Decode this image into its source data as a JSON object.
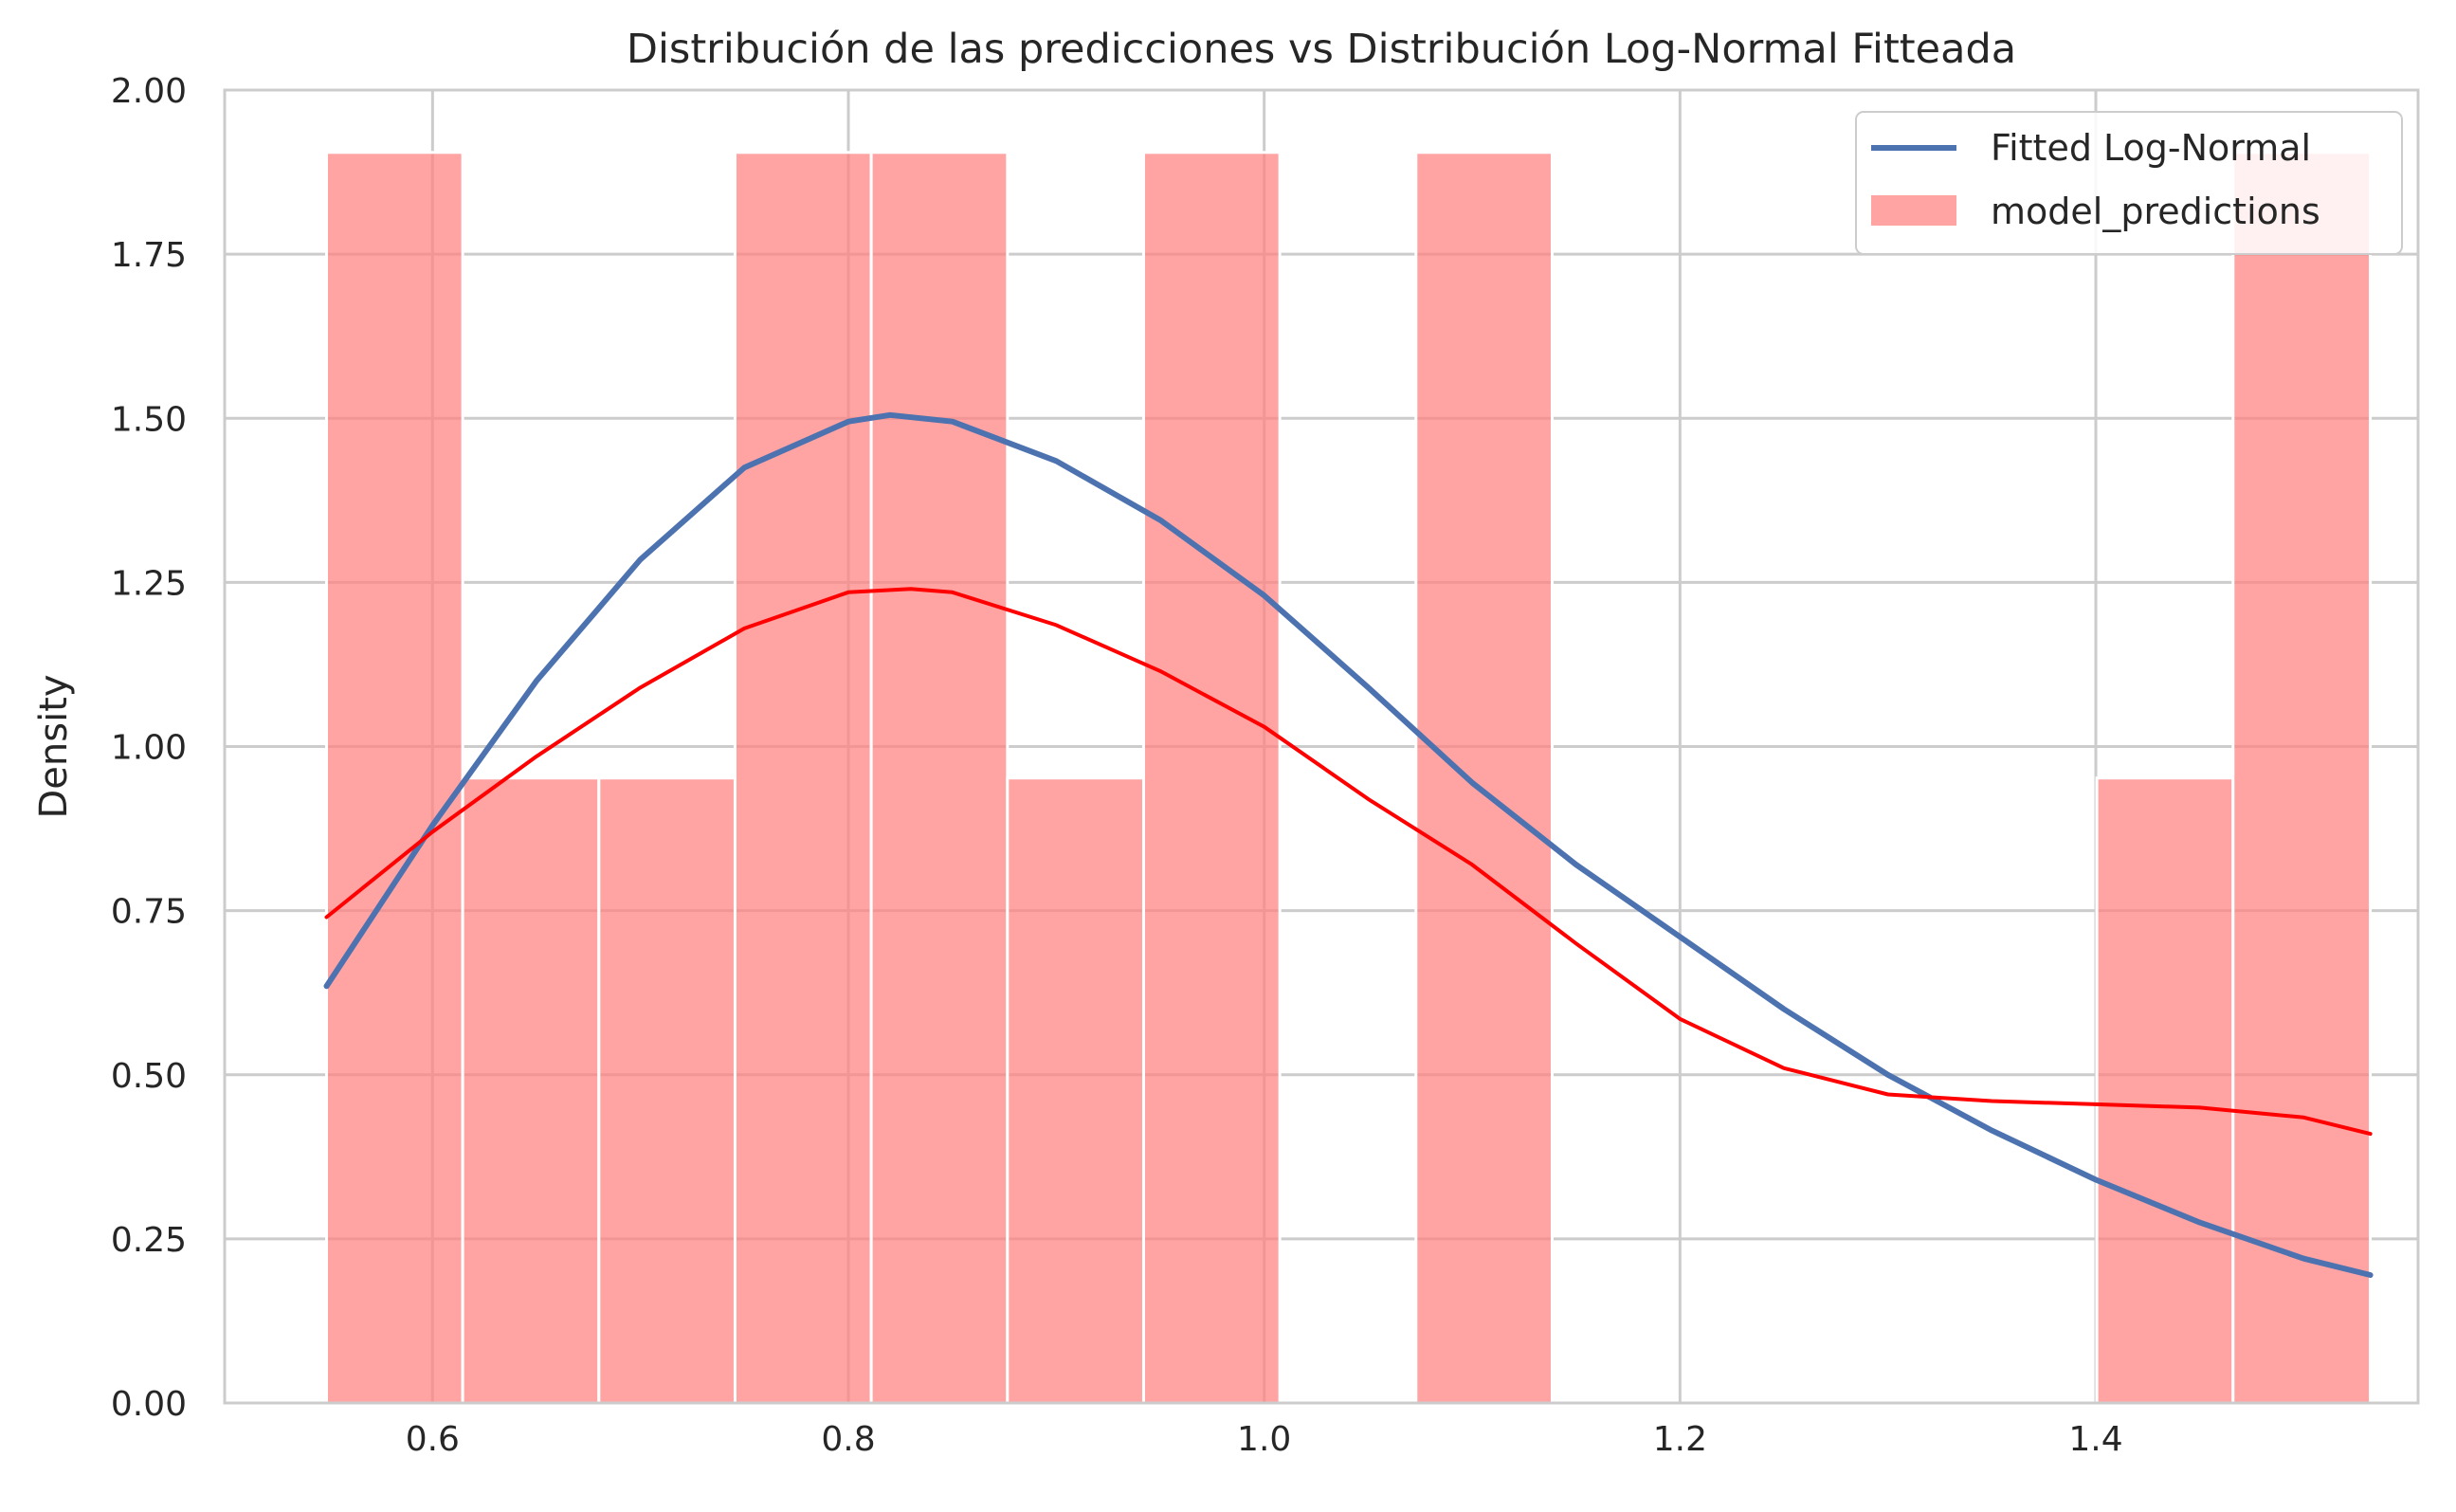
{
  "chart_data": {
    "type": "bar",
    "title": "Distribución de las predicciones vs Distribución Log-Normal Fitteada",
    "xlabel": "",
    "ylabel": "Density",
    "xlim": [
      0.5,
      1.555
    ],
    "ylim": [
      0,
      2.0
    ],
    "x_ticks": [
      0.6,
      0.8,
      1.0,
      1.2,
      1.4
    ],
    "x_tick_labels": [
      "0.6",
      "0.8",
      "1.0",
      "1.2",
      "1.4"
    ],
    "y_ticks": [
      0,
      0.25,
      0.5,
      0.75,
      1.0,
      1.25,
      1.5,
      1.75,
      2.0
    ],
    "y_tick_labels": [
      "0.00",
      "0.25",
      "0.50",
      "0.75",
      "1.00",
      "1.25",
      "1.50",
      "1.75",
      "2.00"
    ],
    "grid": true,
    "legend_position": "top-right",
    "legend": [
      "Fitted Log-Normal",
      "model_predictions"
    ],
    "histogram": {
      "name": "model_predictions",
      "color": "#ff7f7f",
      "bin_edges": [
        0.549,
        0.6145,
        0.68,
        0.7455,
        0.811,
        0.8765,
        0.942,
        1.0075,
        1.073,
        1.1385,
        1.204,
        1.2695,
        1.335,
        1.4005,
        1.466,
        1.532
      ],
      "densities": [
        1.905,
        0.952,
        0.952,
        1.905,
        1.905,
        0.952,
        1.905,
        0,
        1.905,
        0,
        0,
        0,
        0,
        0.952,
        1.905
      ]
    },
    "series": [
      {
        "name": "Fitted Log-Normal",
        "color": "#4c72b0",
        "x": [
          0.549,
          0.6,
          0.65,
          0.7,
          0.75,
          0.8,
          0.82,
          0.85,
          0.9,
          0.95,
          1.0,
          1.05,
          1.1,
          1.15,
          1.2,
          1.25,
          1.3,
          1.35,
          1.4,
          1.45,
          1.5,
          1.532
        ],
        "y": [
          0.635,
          0.88,
          1.1,
          1.285,
          1.425,
          1.495,
          1.505,
          1.495,
          1.435,
          1.345,
          1.23,
          1.09,
          0.945,
          0.82,
          0.71,
          0.6,
          0.5,
          0.415,
          0.34,
          0.275,
          0.22,
          0.195
        ]
      },
      {
        "name": "",
        "color": "#ff0000",
        "x": [
          0.549,
          0.6,
          0.65,
          0.7,
          0.75,
          0.8,
          0.83,
          0.85,
          0.9,
          0.95,
          1.0,
          1.05,
          1.1,
          1.15,
          1.2,
          1.25,
          1.3,
          1.35,
          1.4,
          1.45,
          1.5,
          1.532
        ],
        "y": [
          0.74,
          0.87,
          0.985,
          1.09,
          1.18,
          1.235,
          1.24,
          1.235,
          1.185,
          1.115,
          1.03,
          0.92,
          0.82,
          0.7,
          0.585,
          0.51,
          0.47,
          0.46,
          0.455,
          0.45,
          0.435,
          0.41
        ]
      }
    ]
  }
}
